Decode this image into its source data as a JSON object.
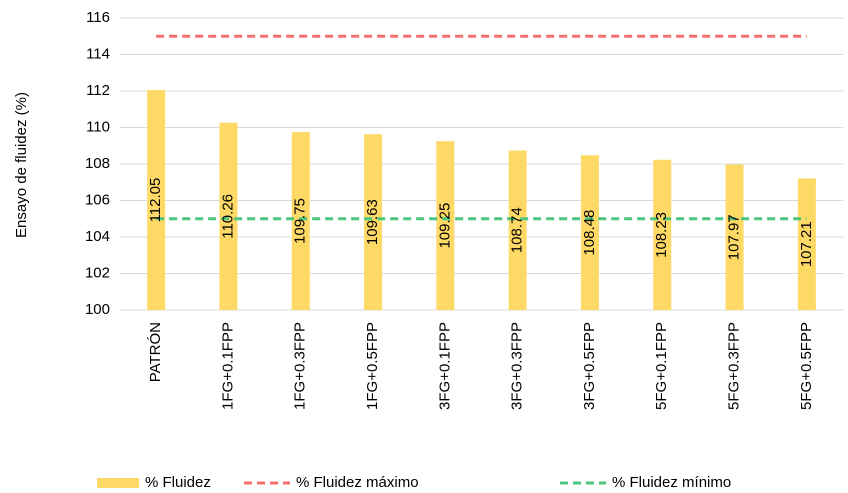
{
  "chart_data": {
    "type": "bar",
    "y_label": "Ensayo de fluidez (%)",
    "categories": [
      "PATRÓN",
      "1FG+0.1FPP",
      "1FG+0.3FPP",
      "1FG+0.5FPP",
      "3FG+0.1FPP",
      "3FG+0.3FPP",
      "3FG+0.5FPP",
      "5FG+0.1FPP",
      "5FG+0.3FPP",
      "5FG+0.5FPP"
    ],
    "series": [
      {
        "name": "% Fluidez",
        "type": "bar",
        "color": "#ffd966",
        "values": [
          112.05,
          110.26,
          109.75,
          109.63,
          109.25,
          108.74,
          108.48,
          108.23,
          107.97,
          107.21
        ]
      },
      {
        "name": "% Fluidez máximo",
        "type": "line",
        "dashed": true,
        "color": "#f4706f",
        "values": [
          115,
          115,
          115,
          115,
          115,
          115,
          115,
          115,
          115,
          115
        ]
      },
      {
        "name": "% Fluidez mínimo",
        "type": "line",
        "dashed": true,
        "color": "#4cc57e",
        "values": [
          105,
          105,
          105,
          105,
          105,
          105,
          105,
          105,
          105,
          105
        ]
      }
    ],
    "ylim": [
      100,
      116
    ],
    "yticks": [
      100,
      102,
      104,
      106,
      108,
      110,
      112,
      114,
      116
    ],
    "grid": true,
    "legend": "bottom"
  }
}
